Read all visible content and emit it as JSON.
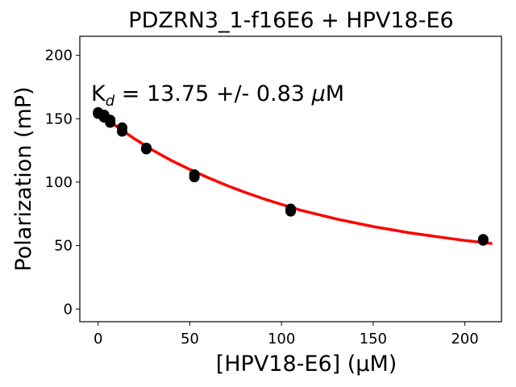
{
  "chart_data": {
    "type": "scatter",
    "title": "PDZRN3_1-f16E6 + HPV18-E6",
    "xlabel": "[HPV18-E6] (µM)",
    "ylabel": "Polarization (mP)",
    "xlim": [
      -10,
      220
    ],
    "ylim": [
      -10,
      215
    ],
    "x_ticks": [
      0,
      50,
      100,
      150,
      200
    ],
    "x_tick_labels": [
      "0",
      "50",
      "100",
      "150",
      "200"
    ],
    "y_ticks": [
      0,
      50,
      100,
      150,
      200
    ],
    "y_tick_labels": [
      "0",
      "50",
      "100",
      "150",
      "200"
    ],
    "grid": false,
    "annotation": {
      "prefix": "K",
      "subscript": "d",
      "rest": " = 13.75 +/- 0.83 ",
      "mu": "μ",
      "unit": "M"
    },
    "series": [
      {
        "kind": "points",
        "color": "#000000",
        "points": [
          {
            "x": 0,
            "y": 155
          },
          {
            "x": 0,
            "y": 154
          },
          {
            "x": 3.3,
            "y": 153
          },
          {
            "x": 3.3,
            "y": 151
          },
          {
            "x": 6.6,
            "y": 149
          },
          {
            "x": 6.6,
            "y": 147
          },
          {
            "x": 13.1,
            "y": 143
          },
          {
            "x": 13.1,
            "y": 140
          },
          {
            "x": 26.3,
            "y": 127
          },
          {
            "x": 26.3,
            "y": 126
          },
          {
            "x": 52.5,
            "y": 106
          },
          {
            "x": 52.5,
            "y": 104
          },
          {
            "x": 105,
            "y": 79
          },
          {
            "x": 105,
            "y": 77
          },
          {
            "x": 210,
            "y": 55
          },
          {
            "x": 210,
            "y": 54
          }
        ]
      },
      {
        "kind": "line",
        "color": "#ff0000",
        "points": [
          {
            "x": 0,
            "y": 155
          },
          {
            "x": 5,
            "y": 149.5
          },
          {
            "x": 10,
            "y": 144
          },
          {
            "x": 15,
            "y": 139
          },
          {
            "x": 20,
            "y": 134
          },
          {
            "x": 25,
            "y": 129.5
          },
          {
            "x": 30,
            "y": 125
          },
          {
            "x": 40,
            "y": 117
          },
          {
            "x": 50,
            "y": 110
          },
          {
            "x": 60,
            "y": 103.5
          },
          {
            "x": 70,
            "y": 97.5
          },
          {
            "x": 80,
            "y": 92
          },
          {
            "x": 90,
            "y": 87
          },
          {
            "x": 100,
            "y": 82.5
          },
          {
            "x": 110,
            "y": 78
          },
          {
            "x": 120,
            "y": 74.5
          },
          {
            "x": 130,
            "y": 71
          },
          {
            "x": 140,
            "y": 68
          },
          {
            "x": 150,
            "y": 65
          },
          {
            "x": 160,
            "y": 62.5
          },
          {
            "x": 170,
            "y": 60
          },
          {
            "x": 180,
            "y": 58
          },
          {
            "x": 190,
            "y": 56
          },
          {
            "x": 200,
            "y": 54
          },
          {
            "x": 210,
            "y": 52.5
          },
          {
            "x": 215,
            "y": 51.5
          }
        ]
      }
    ]
  }
}
